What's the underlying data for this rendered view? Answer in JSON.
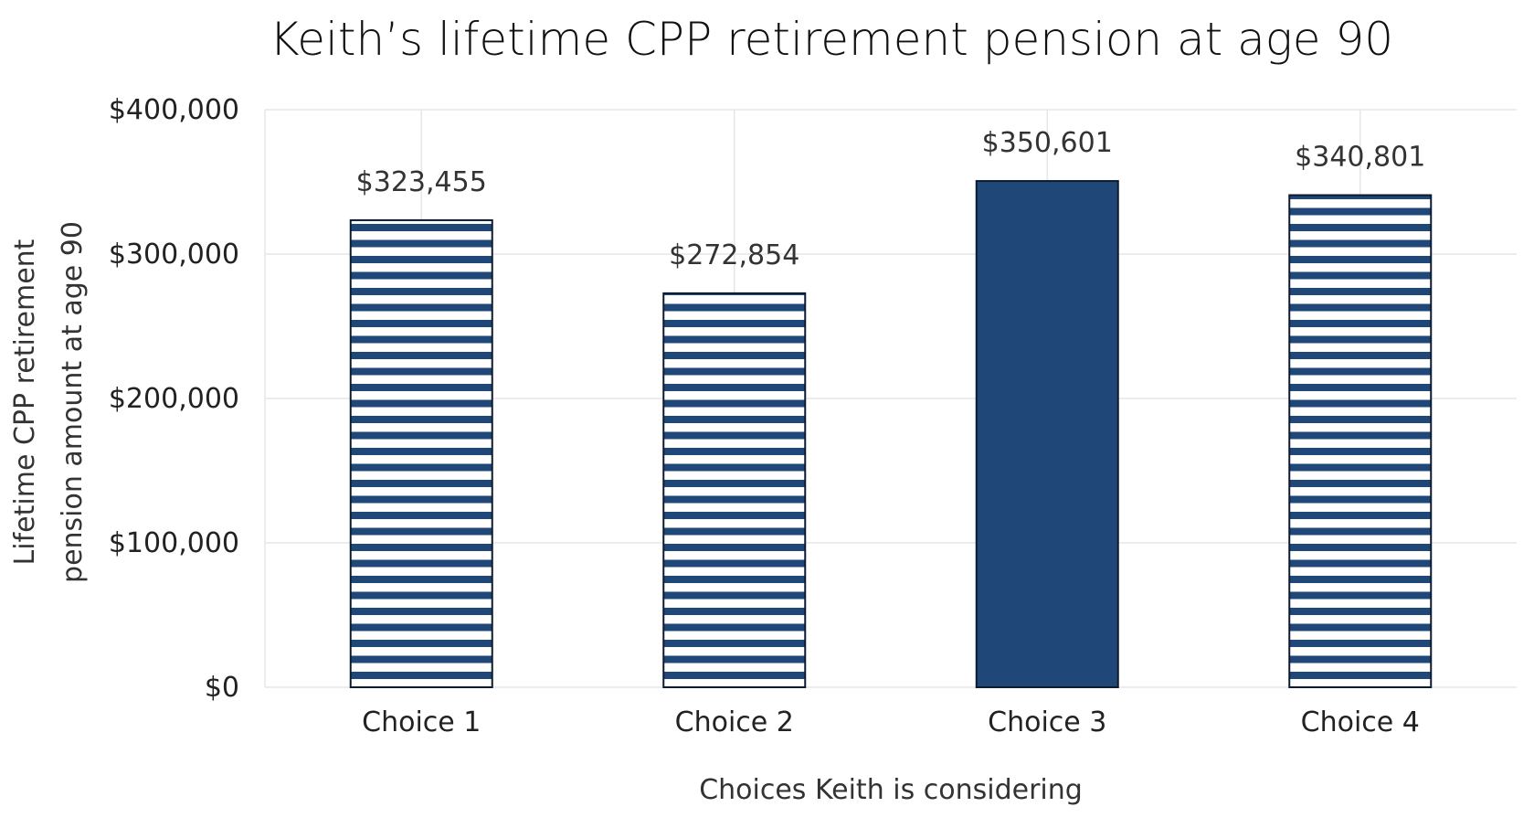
{
  "chart_data": {
    "type": "bar",
    "title": "Keith’s lifetime CPP retirement pension at age 90",
    "xlabel": "Choices Keith is considering",
    "ylabel_lines": [
      "Lifetime CPP retirement",
      "pension amount at age 90"
    ],
    "categories": [
      "Choice 1",
      "Choice 2",
      "Choice 3",
      "Choice 4"
    ],
    "values": [
      323455,
      272854,
      350601,
      340801
    ],
    "value_labels": [
      "$323,455",
      "$272,854",
      "$350,601",
      "$340,801"
    ],
    "fill_styles": [
      "striped",
      "striped",
      "solid",
      "striped"
    ],
    "ylim": [
      0,
      400000
    ],
    "yticks": [
      0,
      100000,
      200000,
      300000,
      400000
    ],
    "ytick_labels": [
      "$0",
      "$100,000",
      "$200,000",
      "$300,000",
      "$400,000"
    ],
    "grid": true,
    "legend": "none",
    "colors": {
      "bar": "#1f4778",
      "stripe_gap": "#ffffff",
      "outline": "#0d1b30"
    }
  }
}
